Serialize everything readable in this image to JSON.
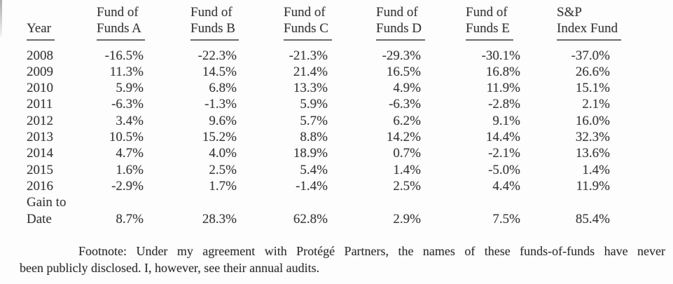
{
  "colors": {
    "ink": "#3a3a3a",
    "rule": "#6b6b6b",
    "paper": "#fdfdfd"
  },
  "table": {
    "year_header": "Year",
    "columns": [
      {
        "line1": "Fund of",
        "line2": "Funds A"
      },
      {
        "line1": "Fund of",
        "line2": "Funds B"
      },
      {
        "line1": "Fund of",
        "line2": "Funds C"
      },
      {
        "line1": "Fund of",
        "line2": "Funds D"
      },
      {
        "line1": "Fund of",
        "line2": "Funds E"
      },
      {
        "line1": "S&P",
        "line2": "Index Fund"
      }
    ],
    "rows": [
      {
        "label": "2008",
        "values": [
          "-16.5%",
          "-22.3%",
          "-21.3%",
          "-29.3%",
          "-30.1%",
          "-37.0%"
        ]
      },
      {
        "label": "2009",
        "values": [
          "11.3%",
          "14.5%",
          "21.4%",
          "16.5%",
          "16.8%",
          "26.6%"
        ]
      },
      {
        "label": "2010",
        "values": [
          "5.9%",
          "6.8%",
          "13.3%",
          "4.9%",
          "11.9%",
          "15.1%"
        ]
      },
      {
        "label": "2011",
        "values": [
          "-6.3%",
          "-1.3%",
          "5.9%",
          "-6.3%",
          "-2.8%",
          "2.1%"
        ]
      },
      {
        "label": "2012",
        "values": [
          "3.4%",
          "9.6%",
          "5.7%",
          "6.2%",
          "9.1%",
          "16.0%"
        ]
      },
      {
        "label": "2013",
        "values": [
          "10.5%",
          "15.2%",
          "8.8%",
          "14.2%",
          "14.4%",
          "32.3%"
        ]
      },
      {
        "label": "2014",
        "values": [
          "4.7%",
          "4.0%",
          "18.9%",
          "0.7%",
          "-2.1%",
          "13.6%"
        ]
      },
      {
        "label": "2015",
        "values": [
          "1.6%",
          "2.5%",
          "5.4%",
          "1.4%",
          "-5.0%",
          "1.4%"
        ]
      },
      {
        "label": "2016",
        "values": [
          "-2.9%",
          "1.7%",
          "-1.4%",
          "2.5%",
          "4.4%",
          "11.9%"
        ]
      }
    ],
    "summary": {
      "label_line1": "Gain to",
      "label_line2": "Date",
      "values": [
        "8.7%",
        "28.3%",
        "62.8%",
        "2.9%",
        "7.5%",
        "85.4%"
      ]
    }
  },
  "footnote": {
    "line1": "Footnote: Under my agreement with Protégé Partners, the names of these funds-of-funds have never",
    "line2": "been publicly disclosed. I, however, see their annual audits.",
    "full_text": "Footnote: Under my agreement with Protégé Partners, the names of these funds-of-funds have never been publicly disclosed. I, however, see their annual audits."
  }
}
